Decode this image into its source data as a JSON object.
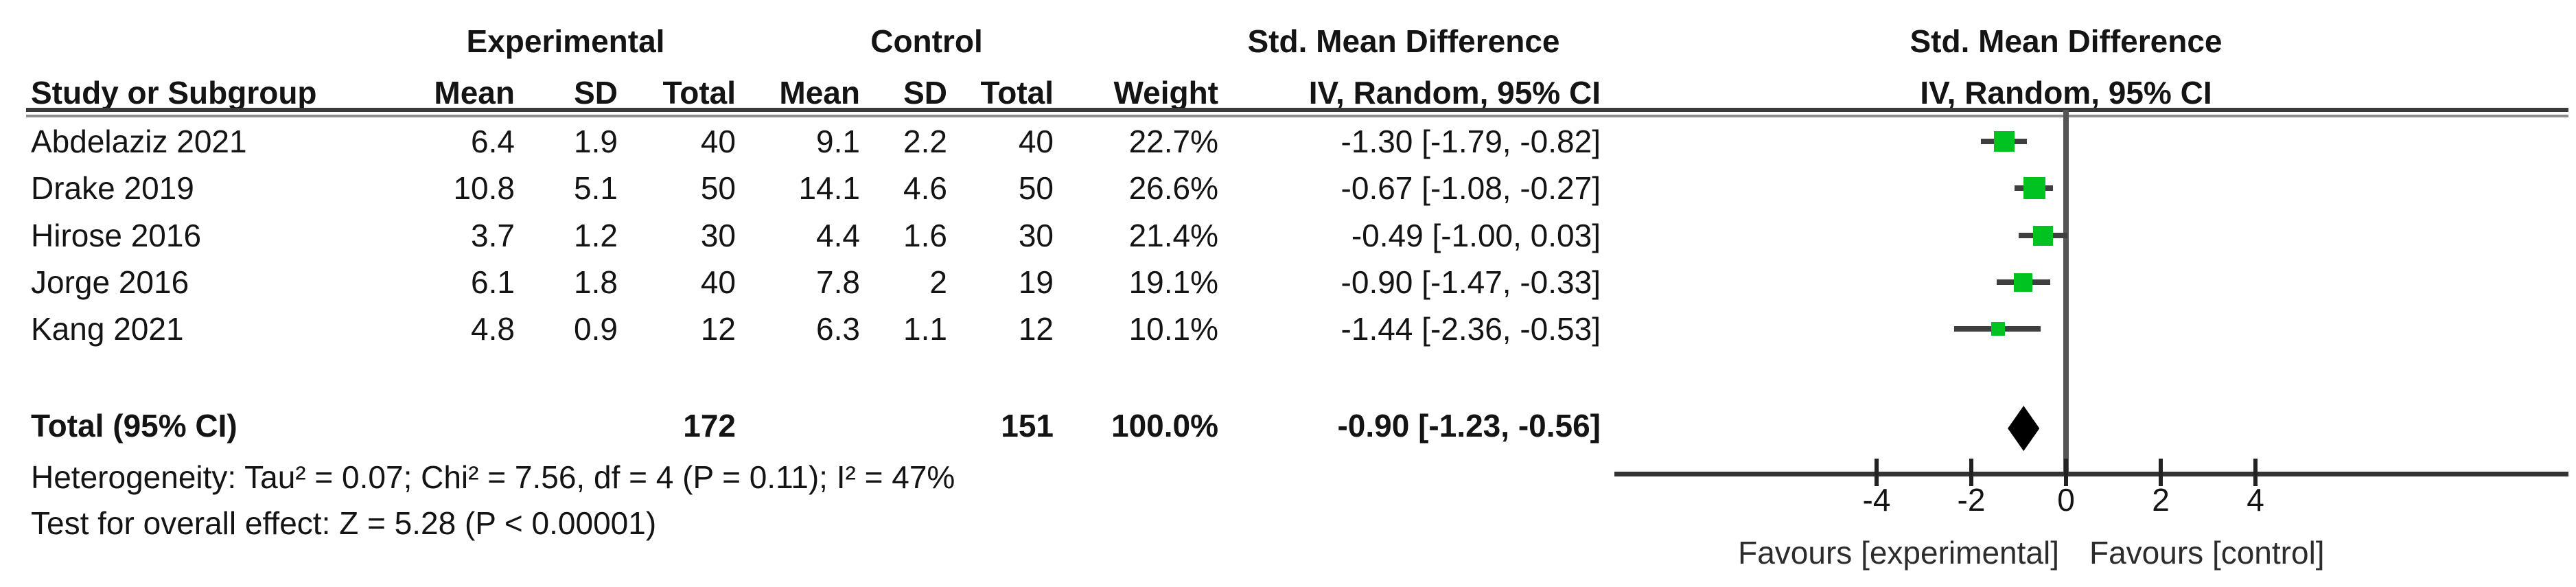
{
  "groups": {
    "experimental": "Experimental",
    "control": "Control",
    "smd_left": "Std. Mean Difference",
    "smd_right": "Std. Mean Difference"
  },
  "columns": {
    "study": "Study or Subgroup",
    "mean": "Mean",
    "sd": "SD",
    "total": "Total",
    "mean2": "Mean",
    "sd2": "SD",
    "total2": "Total",
    "weight": "Weight",
    "ci": "IV, Random, 95% CI",
    "ci_right": "IV, Random, 95% CI"
  },
  "studies": [
    {
      "name": "Abdelaziz 2021",
      "mean_e": "6.4",
      "sd_e": "1.9",
      "n_e": "40",
      "mean_c": "9.1",
      "sd_c": "2.2",
      "n_c": "40",
      "weight": "22.7%",
      "ci_label": "-1.30 [-1.79, -0.82]",
      "est": -1.3,
      "lo": -1.79,
      "hi": -0.82,
      "w": 22.7
    },
    {
      "name": "Drake 2019",
      "mean_e": "10.8",
      "sd_e": "5.1",
      "n_e": "50",
      "mean_c": "14.1",
      "sd_c": "4.6",
      "n_c": "50",
      "weight": "26.6%",
      "ci_label": "-0.67 [-1.08, -0.27]",
      "est": -0.67,
      "lo": -1.08,
      "hi": -0.27,
      "w": 26.6
    },
    {
      "name": "Hirose 2016",
      "mean_e": "3.7",
      "sd_e": "1.2",
      "n_e": "30",
      "mean_c": "4.4",
      "sd_c": "1.6",
      "n_c": "30",
      "weight": "21.4%",
      "ci_label": "-0.49 [-1.00, 0.03]",
      "est": -0.49,
      "lo": -1.0,
      "hi": 0.03,
      "w": 21.4
    },
    {
      "name": "Jorge 2016",
      "mean_e": "6.1",
      "sd_e": "1.8",
      "n_e": "40",
      "mean_c": "7.8",
      "sd_c": "2",
      "n_c": "19",
      "weight": "19.1%",
      "ci_label": "-0.90 [-1.47, -0.33]",
      "est": -0.9,
      "lo": -1.47,
      "hi": -0.33,
      "w": 19.1
    },
    {
      "name": "Kang 2021",
      "mean_e": "4.8",
      "sd_e": "0.9",
      "n_e": "12",
      "mean_c": "6.3",
      "sd_c": "1.1",
      "n_c": "12",
      "weight": "10.1%",
      "ci_label": "-1.44 [-2.36, -0.53]",
      "est": -1.44,
      "lo": -2.36,
      "hi": -0.53,
      "w": 10.1
    }
  ],
  "total": {
    "label": "Total (95% CI)",
    "n_e": "172",
    "n_c": "151",
    "weight": "100.0%",
    "ci_label": "-0.90 [-1.23, -0.56]",
    "est": -0.9,
    "lo": -1.23,
    "hi": -0.56
  },
  "footnotes": {
    "heterogeneity": "Heterogeneity: Tau² = 0.07; Chi² = 7.56, df = 4 (P = 0.11); I² = 47%",
    "overall": "Test for overall effect: Z = 5.28 (P < 0.00001)"
  },
  "axis": {
    "ticks": [
      -4,
      -2,
      0,
      2,
      4
    ],
    "tick_labels": [
      "-4",
      "-2",
      "0",
      "2",
      "4"
    ],
    "favours_left": "Favours [experimental]",
    "favours_right": "Favours [control]"
  },
  "colors": {
    "square": "#00C220",
    "whisker": "#3f3f3f",
    "diamond": "#000000",
    "axis": "#333333"
  },
  "chart_data": {
    "type": "forest",
    "effect_measure": "Std. Mean Difference",
    "model": "IV, Random, 95% CI",
    "studies": [
      {
        "name": "Abdelaziz 2021",
        "mean_exp": 6.4,
        "sd_exp": 1.9,
        "n_exp": 40,
        "mean_ctl": 9.1,
        "sd_ctl": 2.2,
        "n_ctl": 40,
        "weight_pct": 22.7,
        "smd": -1.3,
        "ci_low": -1.79,
        "ci_high": -0.82
      },
      {
        "name": "Drake 2019",
        "mean_exp": 10.8,
        "sd_exp": 5.1,
        "n_exp": 50,
        "mean_ctl": 14.1,
        "sd_ctl": 4.6,
        "n_ctl": 50,
        "weight_pct": 26.6,
        "smd": -0.67,
        "ci_low": -1.08,
        "ci_high": -0.27
      },
      {
        "name": "Hirose 2016",
        "mean_exp": 3.7,
        "sd_exp": 1.2,
        "n_exp": 30,
        "mean_ctl": 4.4,
        "sd_ctl": 1.6,
        "n_ctl": 30,
        "weight_pct": 21.4,
        "smd": -0.49,
        "ci_low": -1.0,
        "ci_high": 0.03
      },
      {
        "name": "Jorge 2016",
        "mean_exp": 6.1,
        "sd_exp": 1.8,
        "n_exp": 40,
        "mean_ctl": 7.8,
        "sd_ctl": 2,
        "n_ctl": 19,
        "weight_pct": 19.1,
        "smd": -0.9,
        "ci_low": -1.47,
        "ci_high": -0.33
      },
      {
        "name": "Kang 2021",
        "mean_exp": 4.8,
        "sd_exp": 0.9,
        "n_exp": 12,
        "mean_ctl": 6.3,
        "sd_ctl": 1.1,
        "n_ctl": 12,
        "weight_pct": 10.1,
        "smd": -1.44,
        "ci_low": -2.36,
        "ci_high": -0.53
      }
    ],
    "total": {
      "n_exp": 172,
      "n_ctl": 151,
      "weight_pct": 100.0,
      "smd": -0.9,
      "ci_low": -1.23,
      "ci_high": -0.56
    },
    "heterogeneity": {
      "tau2": 0.07,
      "chi2": 7.56,
      "df": 4,
      "p": 0.11,
      "i2_pct": 47
    },
    "overall_effect": {
      "z": 5.28,
      "p": "< 0.00001"
    },
    "x_axis": {
      "ticks": [
        -4,
        -2,
        0,
        2,
        4
      ],
      "zero_line": 0,
      "favours_left": "Favours [experimental]",
      "favours_right": "Favours [control]"
    }
  }
}
